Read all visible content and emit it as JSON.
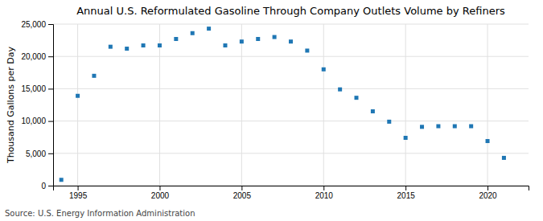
{
  "chart_data": {
    "type": "scatter",
    "title": "Annual U.S. Reformulated Gasoline Through Company Outlets Volume by Refiners",
    "ylabel": "Thousand Gallons per Day",
    "annotations": [
      "Source: U.S. Energy Information Administration"
    ],
    "x": [
      1994,
      1995,
      1996,
      1997,
      1998,
      1999,
      2000,
      2001,
      2002,
      2003,
      2004,
      2005,
      2006,
      2007,
      2008,
      2009,
      2010,
      2011,
      2012,
      2013,
      2014,
      2015,
      2016,
      2017,
      2018,
      2019,
      2020,
      2021
    ],
    "values": [
      900,
      13900,
      17000,
      21500,
      21200,
      21700,
      21700,
      22700,
      23600,
      24300,
      21700,
      22300,
      22700,
      23000,
      22300,
      20900,
      18000,
      14900,
      13600,
      11500,
      9900,
      7400,
      9100,
      9200,
      9200,
      9200,
      6900,
      4300
    ],
    "marker": "square",
    "xlim": [
      1993.5,
      2022.5
    ],
    "xticks": [
      1995,
      2000,
      2005,
      2010,
      2015,
      2020
    ],
    "ylim": [
      0,
      25000
    ],
    "yticks": [
      0,
      {
        "value": 5000,
        "label": "5,000"
      },
      {
        "value": 10000,
        "label": "10,000"
      },
      {
        "value": 15000,
        "label": "15,000"
      },
      {
        "value": 20000,
        "label": "20,000"
      },
      {
        "value": 25000,
        "label": "25,000"
      }
    ],
    "grid": true
  }
}
